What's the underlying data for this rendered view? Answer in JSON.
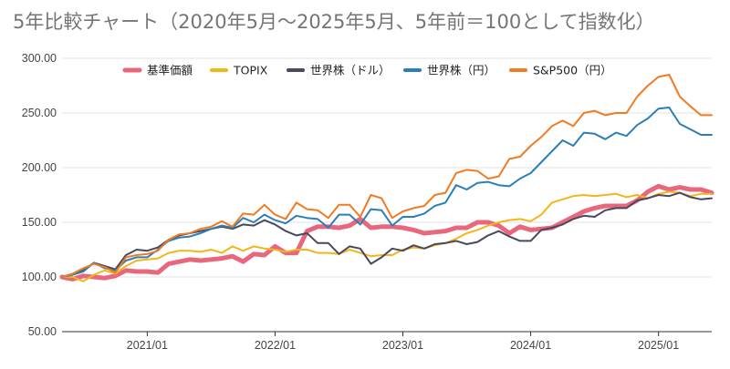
{
  "chart_data": {
    "type": "line",
    "title": "5年比較チャート（2020年5月〜2025年5月、5年前＝100として指数化）",
    "xlabel": "",
    "ylabel": "",
    "ylim": [
      50,
      300
    ],
    "yticks": [
      "50.00",
      "100.00",
      "150.00",
      "200.00",
      "250.00",
      "300.00"
    ],
    "xticks": [
      {
        "label": "2021/01",
        "month": 8
      },
      {
        "label": "2022/01",
        "month": 20
      },
      {
        "label": "2023/01",
        "month": 32
      },
      {
        "label": "2024/01",
        "month": 44
      },
      {
        "label": "2025/01",
        "month": 56
      }
    ],
    "x_start": "2020/05",
    "x_end": "2025/05",
    "grid": true,
    "legend_position": "top",
    "series": [
      {
        "name": "基準価額",
        "color": "#e8677c",
        "width": 5,
        "values": [
          100,
          98,
          101,
          100,
          99,
          101,
          106,
          105,
          105,
          104,
          112,
          114,
          116,
          115,
          116,
          117,
          119,
          114,
          121,
          120,
          128,
          122,
          122,
          142,
          146,
          146,
          145,
          147,
          153,
          145,
          146,
          146,
          145,
          143,
          140,
          141,
          142,
          145,
          145,
          150,
          150,
          147,
          140,
          146,
          143,
          144,
          145,
          150,
          155,
          160,
          163,
          165,
          165,
          165,
          170,
          178,
          183,
          180,
          182,
          180,
          180,
          177
        ]
      },
      {
        "name": "TOPIX",
        "color": "#f3b619",
        "width": 2,
        "values": [
          100,
          100,
          96,
          102,
          106,
          103,
          110,
          115,
          116,
          117,
          122,
          124,
          124,
          123,
          125,
          122,
          128,
          124,
          128,
          126,
          125,
          123,
          125,
          125,
          122,
          122,
          121,
          125,
          122,
          119,
          120,
          120,
          125,
          127,
          126,
          129,
          131,
          135,
          140,
          143,
          147,
          150,
          152,
          153,
          151,
          157,
          168,
          171,
          174,
          175,
          174,
          175,
          176,
          173,
          175,
          172,
          176,
          178,
          177,
          174,
          176,
          176
        ]
      },
      {
        "name": "世界株（ドル）",
        "color": "#4a4760",
        "width": 2,
        "values": [
          100,
          103,
          106,
          113,
          110,
          107,
          120,
          125,
          124,
          127,
          134,
          138,
          140,
          142,
          144,
          146,
          144,
          148,
          147,
          152,
          148,
          142,
          138,
          140,
          131,
          131,
          121,
          128,
          126,
          112,
          118,
          126,
          124,
          129,
          126,
          130,
          131,
          133,
          130,
          132,
          138,
          142,
          137,
          133,
          133,
          143,
          145,
          148,
          153,
          156,
          155,
          161,
          163,
          163,
          170,
          172,
          175,
          174,
          177,
          173,
          171,
          172
        ]
      },
      {
        "name": "世界株（円）",
        "color": "#2b7eb8",
        "width": 2,
        "values": [
          100,
          102,
          105,
          113,
          108,
          106,
          115,
          118,
          118,
          125,
          133,
          136,
          137,
          140,
          144,
          147,
          145,
          154,
          150,
          157,
          152,
          149,
          156,
          154,
          153,
          145,
          157,
          157,
          148,
          162,
          161,
          147,
          155,
          155,
          158,
          165,
          168,
          184,
          180,
          186,
          187,
          184,
          183,
          190,
          195,
          205,
          215,
          225,
          220,
          232,
          231,
          226,
          232,
          229,
          239,
          245,
          254,
          255,
          240,
          235,
          230,
          230
        ]
      },
      {
        "name": "S&P500（円）",
        "color": "#f07b23",
        "width": 2,
        "values": [
          100,
          103,
          108,
          112,
          109,
          104,
          118,
          120,
          121,
          124,
          134,
          139,
          140,
          144,
          146,
          151,
          146,
          158,
          157,
          166,
          157,
          153,
          168,
          162,
          161,
          154,
          166,
          166,
          155,
          175,
          172,
          154,
          160,
          163,
          165,
          175,
          177,
          195,
          198,
          197,
          190,
          192,
          208,
          210,
          220,
          228,
          238,
          243,
          238,
          250,
          252,
          248,
          250,
          250,
          265,
          275,
          283,
          285,
          265,
          256,
          248,
          248
        ]
      }
    ]
  }
}
